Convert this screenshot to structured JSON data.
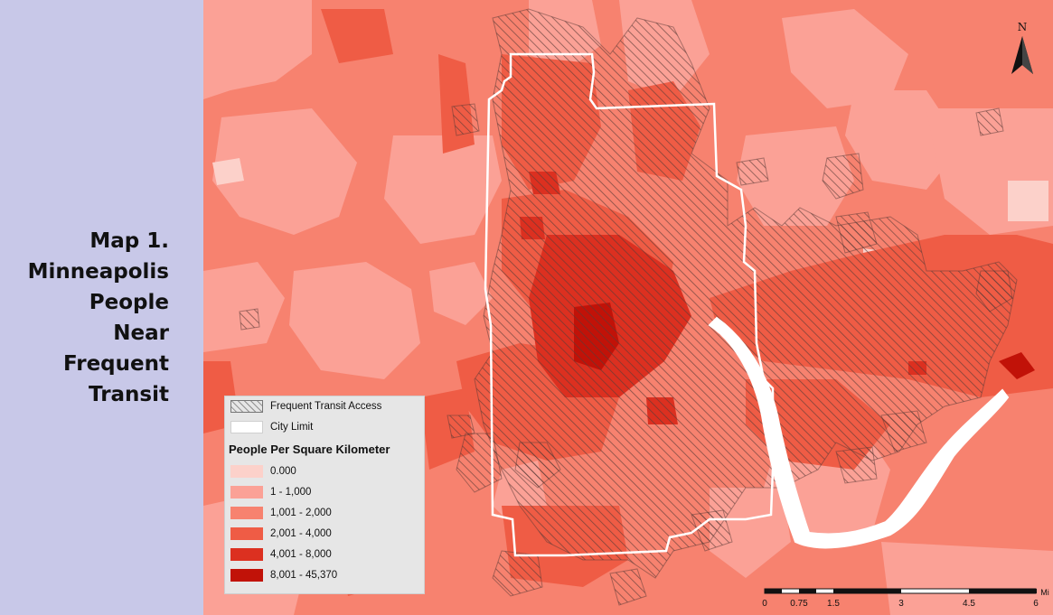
{
  "title_lines": [
    "Map 1.",
    "Minneapolis",
    "People",
    "Near",
    "Frequent",
    "Transit"
  ],
  "legend": {
    "transit_label": "Frequent Transit Access",
    "city_label": "City Limit",
    "heading": "People Per Square Kilometer",
    "classes": [
      {
        "label": "0.000",
        "color": "#fcd1ca"
      },
      {
        "label": "1 - 1,000",
        "color": "#fba196"
      },
      {
        "label": "1,001 - 2,000",
        "color": "#f7826f"
      },
      {
        "label": "2,001 - 4,000",
        "color": "#ef5c45"
      },
      {
        "label": "4,001 - 8,000",
        "color": "#dc3020"
      },
      {
        "label": "8,001 - 45,370",
        "color": "#c11208"
      }
    ]
  },
  "north_label": "N",
  "scale": {
    "labels": [
      "0",
      "0.75",
      "1.5",
      "3",
      "4.5",
      "6"
    ],
    "unit": "Mi"
  },
  "colors": {
    "title_panel": "#c8c8e8",
    "city_limit": "#ffffff",
    "river": "#ffffff",
    "hatch": "#5a3a36"
  }
}
